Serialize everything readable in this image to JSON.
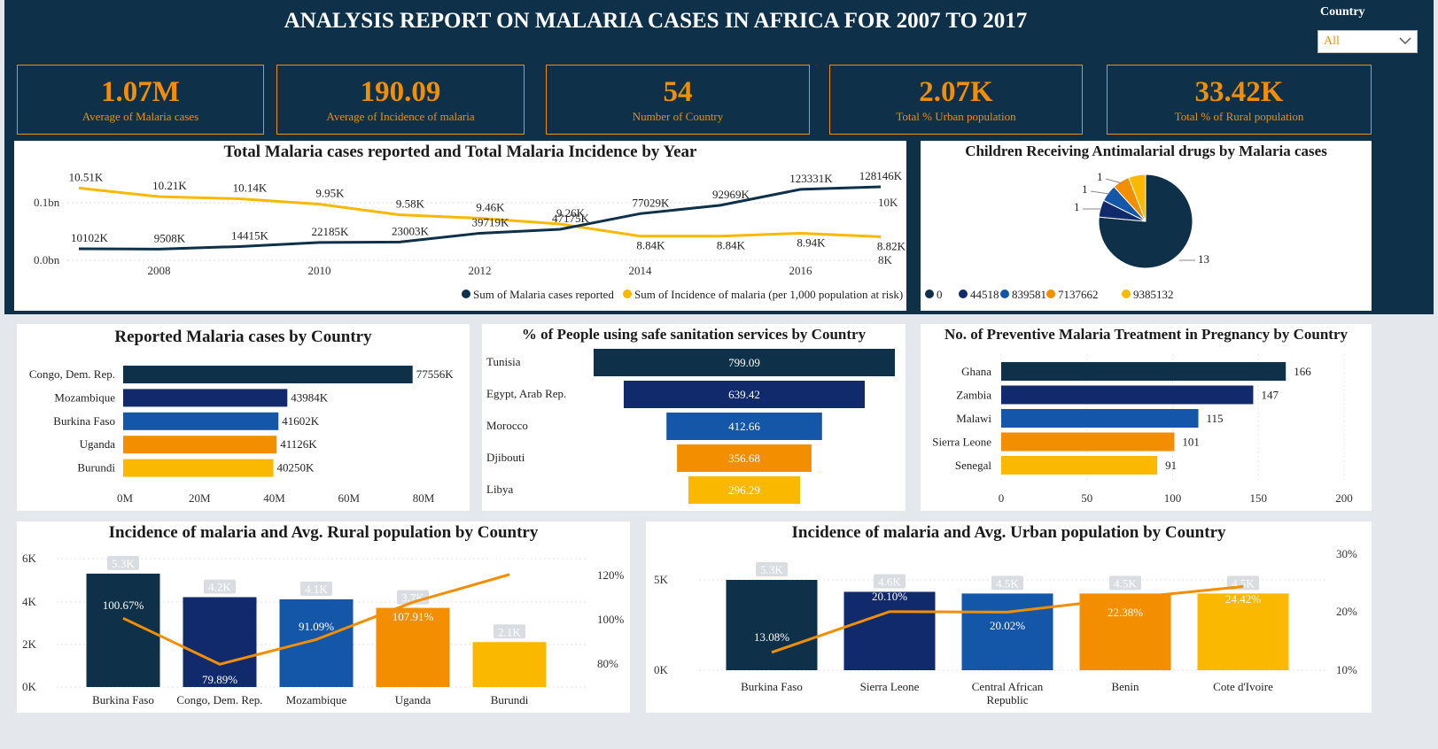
{
  "header": {
    "title": "ANALYSIS REPORT ON MALARIA CASES IN AFRICA FOR 2007 TO 2017",
    "slicer_label": "Country",
    "slicer_value": "All"
  },
  "kpis": [
    {
      "value": "1.07M",
      "label": "Average of Malaria cases"
    },
    {
      "value": "190.09",
      "label": "Average of Incidence of malaria"
    },
    {
      "value": "54",
      "label": "Number of Country"
    },
    {
      "value": "2.07K",
      "label": "Total % Urban population"
    },
    {
      "value": "33.42K",
      "label": "Total % of Rural population"
    }
  ],
  "colors": {
    "navy": "#0e3149",
    "darkblue": "#112a6b",
    "blue": "#1457a8",
    "orange": "#f28e00",
    "yellow": "#fbb800",
    "kpi": "#f28e00"
  },
  "panel_titles": {
    "year": "Total Malaria cases reported and Total Malaria Incidence by Year",
    "pie": "Children Receiving Antimalarial drugs by Malaria cases",
    "reported": "Reported Malaria cases by Country",
    "sanitation": "% of People using safe sanitation services by Country",
    "pregnancy": "No. of Preventive Malaria Treatment in Pregnancy by Country",
    "rural": "Incidence of malaria and Avg. Rural population by Country",
    "urban": "Incidence of malaria and Avg. Urban population by Country"
  },
  "chart_data": [
    {
      "type": "line",
      "title": "Total Malaria cases reported and Total Malaria Incidence by Year",
      "x": [
        2007,
        2008,
        2009,
        2010,
        2011,
        2012,
        2013,
        2014,
        2015,
        2016,
        2017
      ],
      "x_ticks": [
        "2008",
        "2010",
        "2012",
        "2014",
        "2016"
      ],
      "y_left_ticks": [
        "0.0bn",
        "0.1bn"
      ],
      "y_right_ticks": [
        "8K",
        "10K"
      ],
      "series": [
        {
          "name": "Sum of Malaria cases reported",
          "values": [
            10102,
            9508,
            14415,
            22185,
            23003,
            39719,
            47175,
            77029,
            92969,
            123331,
            128146
          ],
          "labels": [
            "10102K",
            "9508K",
            "14415K",
            "22185K",
            "23003K",
            "39719K",
            "47175K",
            "77029K",
            "92969K",
            "123331K",
            "128146K"
          ]
        },
        {
          "name": "Sum of Incidence of malaria (per 1,000 population at risk)",
          "values": [
            10.51,
            10.21,
            10.14,
            9.95,
            9.58,
            9.46,
            9.26,
            8.84,
            8.84,
            8.94,
            8.82
          ],
          "labels": [
            "10.51K",
            "10.21K",
            "10.14K",
            "9.95K",
            "9.58K",
            "9.46K",
            "9.26K",
            "8.84K",
            "8.84K",
            "8.94K",
            "8.82K"
          ]
        }
      ]
    },
    {
      "type": "pie",
      "title": "Children Receiving Antimalarial drugs by Malaria cases",
      "legend": [
        "0",
        "44518",
        "839581",
        "7137662",
        "9385132"
      ],
      "values": [
        13,
        1,
        1,
        1,
        1
      ],
      "labels": [
        "13",
        "1",
        "1",
        "1",
        ""
      ]
    },
    {
      "type": "bar",
      "title": "Reported Malaria cases by Country",
      "categories": [
        "Congo, Dem. Rep.",
        "Mozambique",
        "Burkina Faso",
        "Uganda",
        "Burundi"
      ],
      "values": [
        77556,
        43984,
        41602,
        41126,
        40250
      ],
      "labels": [
        "77556K",
        "43984K",
        "41602K",
        "41126K",
        "40250K"
      ],
      "x_ticks": [
        "0M",
        "20M",
        "40M",
        "60M",
        "80M"
      ],
      "xlim": [
        0,
        80000
      ]
    },
    {
      "type": "bar",
      "title": "% of People using safe sanitation services by Country",
      "categories": [
        "Tunisia",
        "Egypt, Arab Rep.",
        "Morocco",
        "Djibouti",
        "Libya"
      ],
      "values": [
        799.09,
        639.42,
        412.66,
        356.68,
        296.29
      ],
      "labels": [
        "799.09",
        "639.42",
        "412.66",
        "356.68",
        "296.29"
      ]
    },
    {
      "type": "bar",
      "title": "No. of Preventive Malaria Treatment in Pregnancy by Country",
      "categories": [
        "Ghana",
        "Zambia",
        "Malawi",
        "Sierra Leone",
        "Senegal"
      ],
      "values": [
        166,
        147,
        115,
        101,
        91
      ],
      "labels": [
        "166",
        "147",
        "115",
        "101",
        "91"
      ],
      "x_ticks": [
        "0",
        "50",
        "100",
        "150",
        "200"
      ],
      "xlim": [
        0,
        200
      ]
    },
    {
      "type": "bar",
      "title": "Incidence of malaria and Avg. Rural population by Country",
      "categories": [
        "Burkina Faso",
        "Congo, Dem. Rep.",
        "Mozambique",
        "Uganda",
        "Burundi"
      ],
      "bar_values": [
        5.3,
        4.2,
        4.1,
        3.7,
        2.1
      ],
      "bar_labels": [
        "5.3K",
        "4.2K",
        "4.1K",
        "3.7K",
        "2.1K"
      ],
      "line_values": [
        100.67,
        79.89,
        91.09,
        107.91,
        120.45
      ],
      "line_labels": [
        "100.67%",
        "79.89%",
        "91.09%",
        "107.91%",
        "120.45%"
      ],
      "y_left_ticks": [
        "0K",
        "2K",
        "4K",
        "6K"
      ],
      "y_right_ticks": [
        "80%",
        "100%",
        "120%"
      ],
      "ylim": [
        0,
        6
      ]
    },
    {
      "type": "bar",
      "title": "Incidence of malaria and Avg. Urban population by Country",
      "categories": [
        "Burkina Faso",
        "Sierra Leone",
        "Central African Republic",
        "Benin",
        "Cote d'Ivoire"
      ],
      "bar_values": [
        5.3,
        4.6,
        4.5,
        4.5,
        4.5
      ],
      "bar_labels": [
        "5.3K",
        "4.6K",
        "4.5K",
        "4.5K",
        "4.5K"
      ],
      "line_values": [
        13.08,
        20.1,
        20.02,
        22.38,
        24.42
      ],
      "line_labels": [
        "13.08%",
        "20.10%",
        "20.02%",
        "22.38%",
        "24.42%"
      ],
      "y_left_ticks": [
        "0K",
        "5K"
      ],
      "y_right_ticks": [
        "10%",
        "20%",
        "30%"
      ]
    }
  ]
}
